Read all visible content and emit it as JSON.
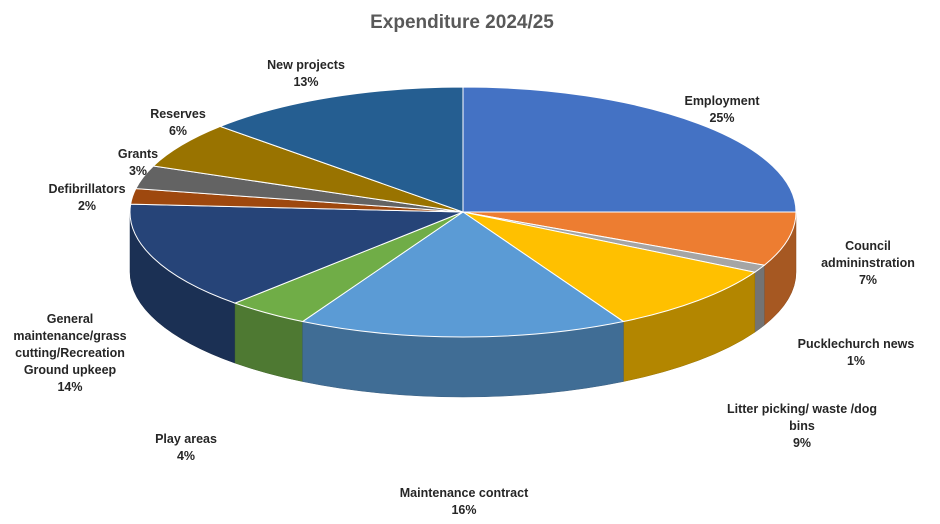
{
  "chart_data": {
    "type": "pie",
    "title": "Expenditure 2024/25",
    "legend": "none",
    "slices": [
      {
        "name": "Employment",
        "value": 25,
        "label_lines": [
          "Employment",
          "25%"
        ],
        "color": "#4472C4"
      },
      {
        "name": "Council admininstration",
        "value": 7,
        "label_lines": [
          "Council",
          "admininstration",
          "7%"
        ],
        "color": "#ED7D31"
      },
      {
        "name": "Pucklechurch news",
        "value": 1,
        "label_lines": [
          "Pucklechurch news",
          "1%"
        ],
        "color": "#A5A5A5"
      },
      {
        "name": "Litter picking/ waste /dog bins",
        "value": 9,
        "label_lines": [
          "Litter picking/ waste /dog",
          "bins",
          "9%"
        ],
        "color": "#FFC000"
      },
      {
        "name": "Maintenance contract",
        "value": 16,
        "label_lines": [
          "Maintenance contract",
          "16%"
        ],
        "color": "#5B9BD5"
      },
      {
        "name": "Play areas",
        "value": 4,
        "label_lines": [
          "Play areas",
          "4%"
        ],
        "color": "#70AD47"
      },
      {
        "name": "General maintenance/grass cutting/Recreation Ground upkeep",
        "value": 14,
        "label_lines": [
          "General",
          "maintenance/grass",
          "cutting/Recreation",
          "Ground upkeep",
          "14%"
        ],
        "color": "#264478"
      },
      {
        "name": "Defibrillators",
        "value": 2,
        "label_lines": [
          "Defibrillators",
          "2%"
        ],
        "color": "#9E480E"
      },
      {
        "name": "Grants",
        "value": 3,
        "label_lines": [
          "Grants",
          "3%"
        ],
        "color": "#636363"
      },
      {
        "name": "Reserves",
        "value": 6,
        "label_lines": [
          "Reserves",
          "6%"
        ],
        "color": "#997300"
      },
      {
        "name": "New projects",
        "value": 13,
        "label_lines": [
          "New projects",
          "13%"
        ],
        "color": "#255E91"
      }
    ]
  }
}
